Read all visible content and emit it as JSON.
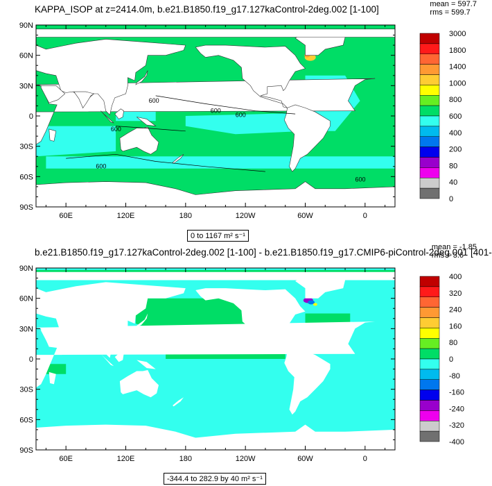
{
  "panels": [
    {
      "title": "KAPPA_ISOP at z=2414.0m, b.e21.B1850.f19_g17.127kaControl-2deg.002 [1-100]",
      "stats": {
        "mean": "mean = 597.7",
        "rms": "rms = 599.7"
      },
      "range_label": "0 to 1167 m² s⁻¹",
      "colorbar": {
        "labels": [
          "3000",
          "1800",
          "1400",
          "1000",
          "800",
          "600",
          "400",
          "200",
          "80",
          "40",
          "0"
        ],
        "colors": [
          "#c00000",
          "#ff1a1a",
          "#ff6633",
          "#ff9933",
          "#ffcc33",
          "#ffff00",
          "#66ee22",
          "#00dd66",
          "#33ffee",
          "#00bbee",
          "#0077ee",
          "#0000ee",
          "#9900cc",
          "#ee00ee",
          "#cccccc",
          "#707070"
        ]
      },
      "contour_labels": [
        "600",
        "600",
        "600",
        "600",
        "600",
        "600"
      ]
    },
    {
      "title": "b.e21.B1850.f19_g17.127kaControl-2deg.002 [1-100] - b.e21.B1850.f19_g17.CMIP6-piControl-2deg.001 [401-",
      "stats": {
        "mean": "mean = -1.85",
        "rms": "rms = 3.6"
      },
      "range_label": "-344.4 to 282.9 by 40 m² s⁻¹",
      "colorbar": {
        "labels": [
          "400",
          "320",
          "240",
          "160",
          "80",
          "0",
          "-80",
          "-160",
          "-240",
          "-320",
          "-400"
        ],
        "colors": [
          "#c00000",
          "#ff1a1a",
          "#ff6633",
          "#ff9933",
          "#ffcc33",
          "#ffff00",
          "#66ee22",
          "#00dd66",
          "#33ffee",
          "#00bbee",
          "#0077ee",
          "#0000ee",
          "#9900cc",
          "#ee00ee",
          "#cccccc",
          "#707070"
        ]
      }
    }
  ],
  "axes": {
    "lat_ticks": [
      "90N",
      "60N",
      "30N",
      "0",
      "30S",
      "60S",
      "90S"
    ],
    "lon_ticks": [
      "60E",
      "120E",
      "180",
      "120W",
      "60W",
      "0"
    ]
  },
  "chart_data": [
    {
      "type": "heatmap",
      "title": "KAPPA_ISOP at z=2414.0m, b.e21.B1850.f19_g17.127kaControl-2deg.002 [1-100]",
      "variable": "KAPPA_ISOP",
      "units": "m² s⁻¹",
      "min": 0,
      "max": 1167,
      "mean": 597.7,
      "rms": 599.7,
      "contour_levels": [
        600
      ],
      "x_range": [
        30,
        390
      ],
      "y_range": [
        -90,
        90
      ],
      "x_ticks": [
        "60E",
        "120E",
        "180",
        "120W",
        "60W",
        "0"
      ],
      "y_ticks": [
        "90N",
        "60N",
        "30N",
        "0",
        "30S",
        "60S",
        "90S"
      ],
      "colorbar_levels": [
        0,
        40,
        80,
        200,
        400,
        600,
        800,
        1000,
        1400,
        1800,
        3000
      ],
      "dominant_values": "mostly 400-800 (green/cyan), higher values 800-1800 near Labrador Sea"
    },
    {
      "type": "heatmap",
      "title": "b.e21.B1850.f19_g17.127kaControl-2deg.002 [1-100] - b.e21.B1850.f19_g17.CMIP6-piControl-2deg.001 [401-",
      "units": "m² s⁻¹",
      "min": -344.4,
      "max": 282.9,
      "interval": 40,
      "mean": -1.85,
      "rms": 3.6,
      "x_range": [
        30,
        390
      ],
      "y_range": [
        -90,
        90
      ],
      "x_ticks": [
        "60E",
        "120E",
        "180",
        "120W",
        "60W",
        "0"
      ],
      "y_ticks": [
        "90N",
        "60N",
        "30N",
        "0",
        "30S",
        "60S",
        "90S"
      ],
      "colorbar_levels": [
        -400,
        -320,
        -240,
        -160,
        -80,
        0,
        80,
        160,
        240,
        320,
        400
      ],
      "dominant_values": "mostly -40 to 40, strong negative anomaly near Labrador Sea"
    }
  ]
}
